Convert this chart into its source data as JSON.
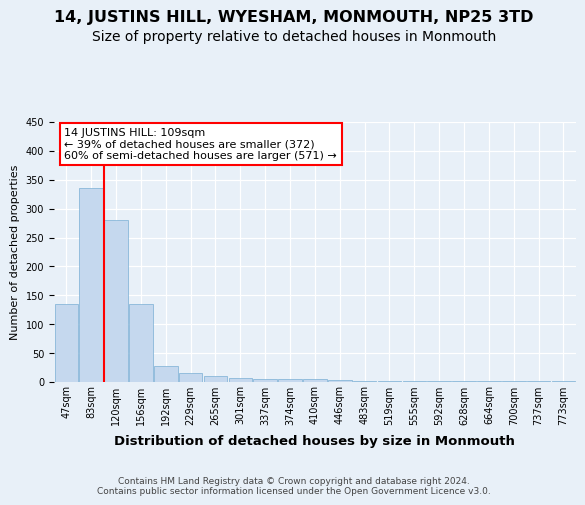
{
  "title": "14, JUSTINS HILL, WYESHAM, MONMOUTH, NP25 3TD",
  "subtitle": "Size of property relative to detached houses in Monmouth",
  "xlabel": "Distribution of detached houses by size in Monmouth",
  "ylabel": "Number of detached properties",
  "footer_line1": "Contains HM Land Registry data © Crown copyright and database right 2024.",
  "footer_line2": "Contains public sector information licensed under the Open Government Licence v3.0.",
  "bar_labels": [
    "47sqm",
    "83sqm",
    "120sqm",
    "156sqm",
    "192sqm",
    "229sqm",
    "265sqm",
    "301sqm",
    "337sqm",
    "374sqm",
    "410sqm",
    "446sqm",
    "483sqm",
    "519sqm",
    "555sqm",
    "592sqm",
    "628sqm",
    "664sqm",
    "700sqm",
    "737sqm",
    "773sqm"
  ],
  "bar_heights": [
    135,
    335,
    280,
    135,
    28,
    15,
    10,
    7,
    6,
    5,
    5,
    3,
    1,
    1,
    1,
    1,
    1,
    2,
    1,
    1,
    2
  ],
  "bar_color": "#c5d8ee",
  "bar_edgecolor": "#7aafd4",
  "vline_color": "red",
  "vline_x": 1.5,
  "annotation_line1": "14 JUSTINS HILL: 109sqm",
  "annotation_line2": "← 39% of detached houses are smaller (372)",
  "annotation_line3": "60% of semi-detached houses are larger (571) →",
  "annotation_box_facecolor": "white",
  "annotation_box_edgecolor": "red",
  "ylim_max": 450,
  "yticks": [
    0,
    50,
    100,
    150,
    200,
    250,
    300,
    350,
    400,
    450
  ],
  "bg_color": "#e8f0f8",
  "grid_color": "white",
  "title_fontsize": 11.5,
  "subtitle_fontsize": 10,
  "xlabel_fontsize": 9.5,
  "ylabel_fontsize": 8,
  "tick_fontsize": 7,
  "annotation_fontsize": 8,
  "footer_fontsize": 6.5
}
